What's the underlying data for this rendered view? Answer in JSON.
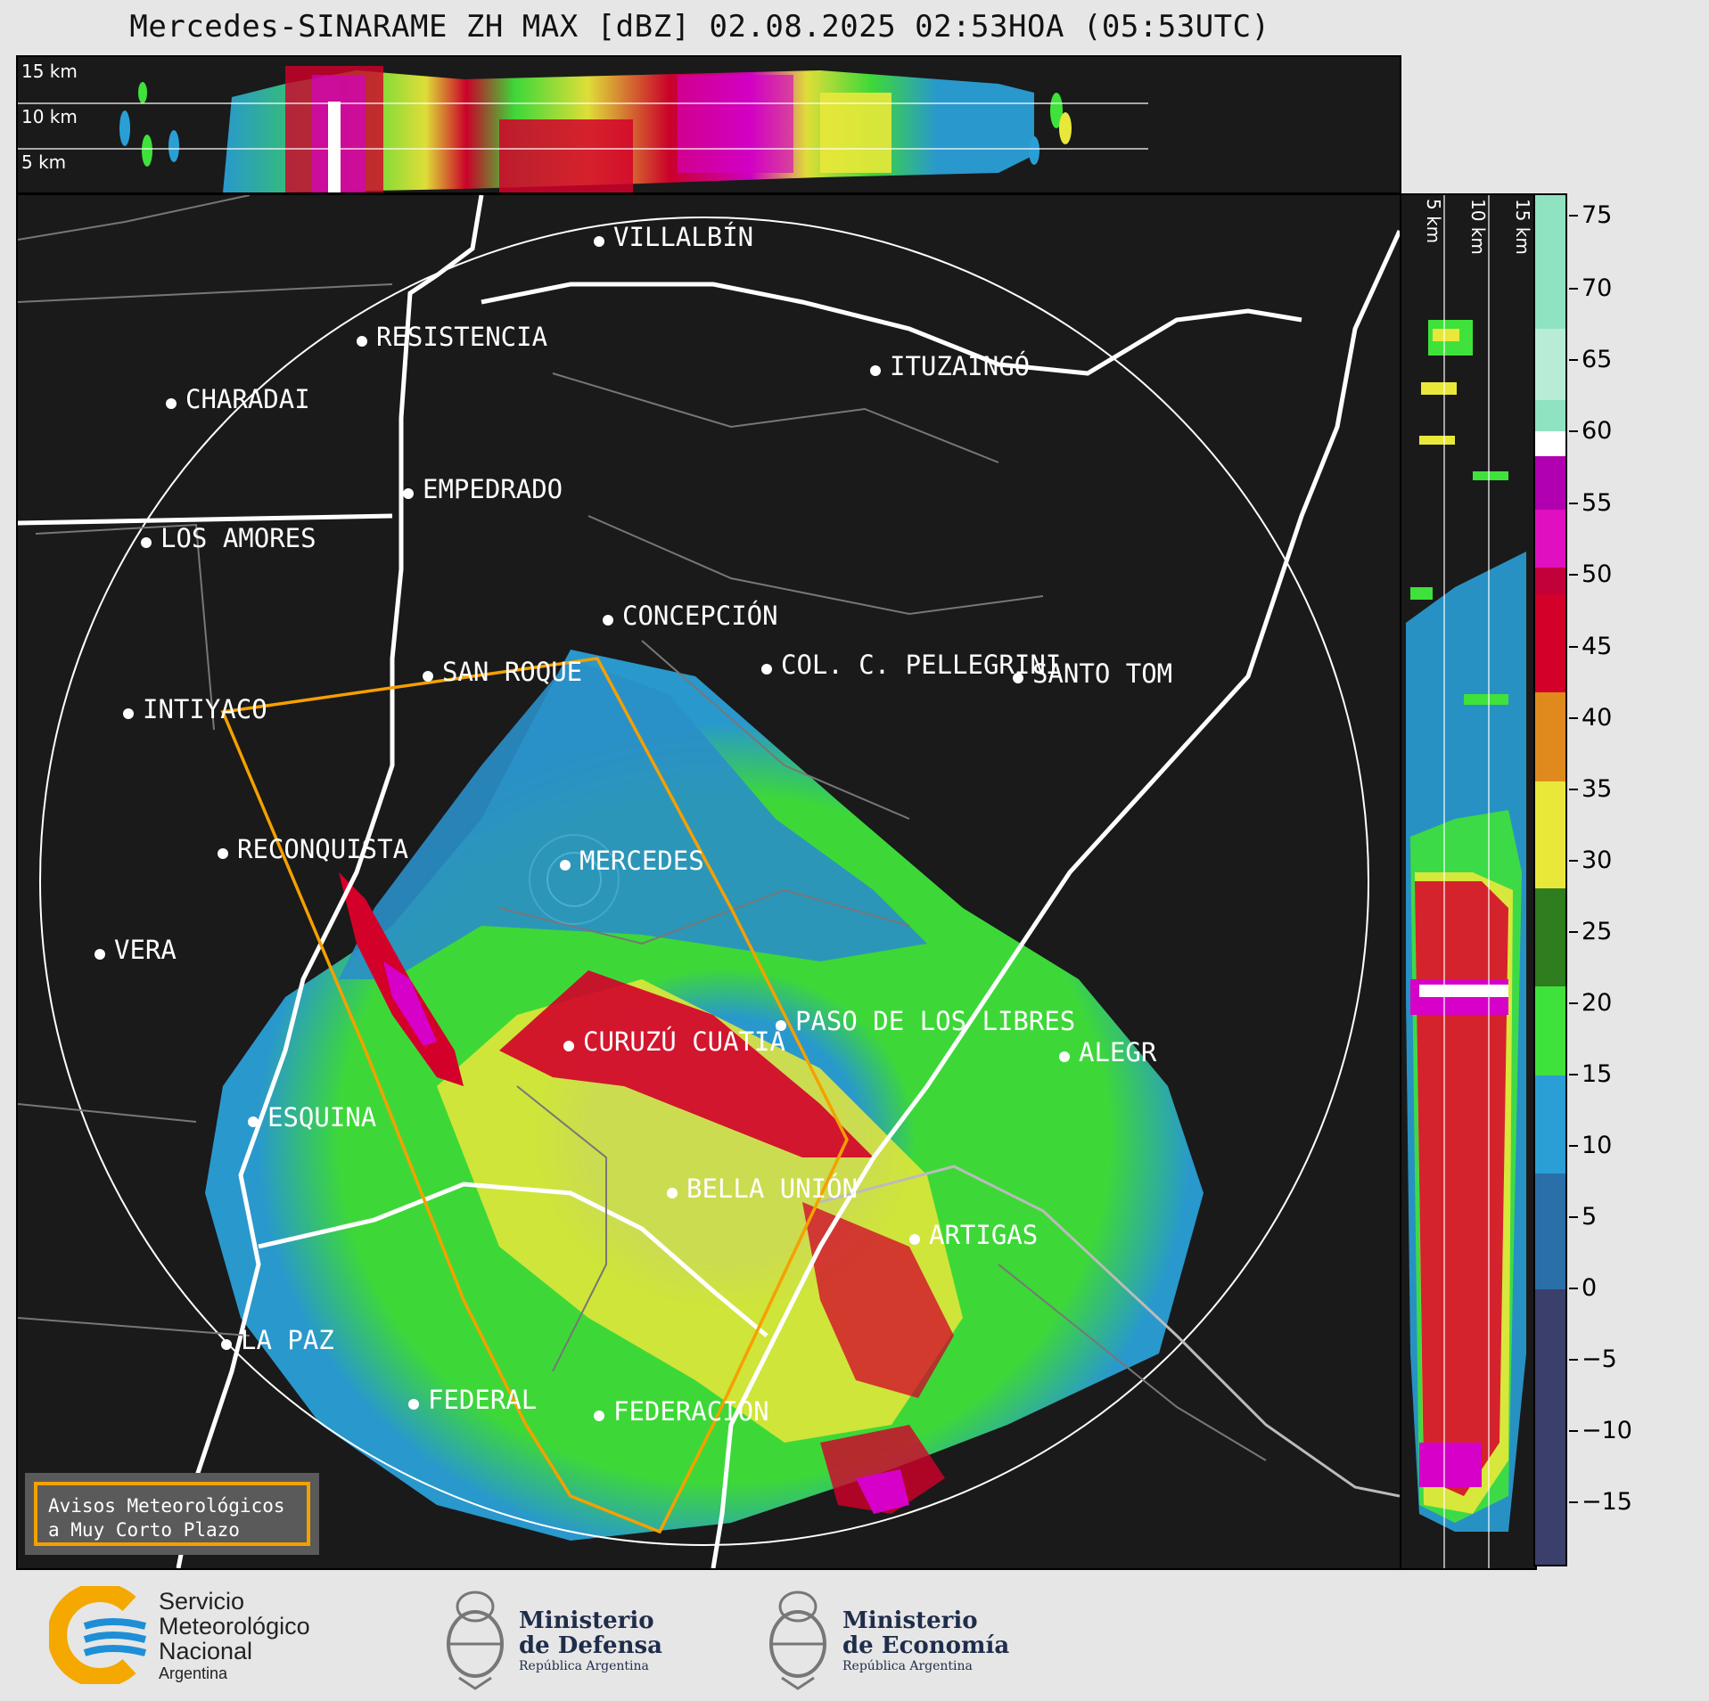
{
  "title": "Mercedes-SINARAME ZH MAX [dBZ] 02.08.2025 02:53HOA (05:53UTC)",
  "top_panel": {
    "height_labels": [
      "15 km",
      "10 km",
      "5 km"
    ]
  },
  "side_panel": {
    "height_labels": [
      "5 km",
      "10 km",
      "15 km"
    ]
  },
  "places": [
    {
      "name": "VILLALBÍN"
    },
    {
      "name": "RESISTENCIA"
    },
    {
      "name": "CHARADAI"
    },
    {
      "name": "ITUZAINGÓ"
    },
    {
      "name": "EMPEDRADO"
    },
    {
      "name": "LOS AMORES"
    },
    {
      "name": "CONCEPCIÓN"
    },
    {
      "name": "COL. C. PELLEGRINI"
    },
    {
      "name": "SANTO TOM"
    },
    {
      "name": "SAN ROQUE"
    },
    {
      "name": "INTIYACO"
    },
    {
      "name": "RECONQUISTA"
    },
    {
      "name": "MERCEDES"
    },
    {
      "name": "VERA"
    },
    {
      "name": "CURUZÚ CUATIÁ"
    },
    {
      "name": "PASO DE LOS LIBRES"
    },
    {
      "name": "ALEGR"
    },
    {
      "name": "ESQUINA"
    },
    {
      "name": "BELLA UNIÓN"
    },
    {
      "name": "ARTIGAS"
    },
    {
      "name": "LA PAZ"
    },
    {
      "name": "FEDERAL"
    },
    {
      "name": "FEDERACIÓN"
    }
  ],
  "warning_box": {
    "line1": "Avisos Meteorológicos",
    "line2": "a Muy Corto Plazo"
  },
  "colorbar": {
    "unit": "dBZ",
    "ticks": [
      "75",
      "70",
      "65",
      "60",
      "55",
      "50",
      "45",
      "40",
      "35",
      "30",
      "25",
      "20",
      "15",
      "10",
      "5",
      "0",
      "−5",
      "−10",
      "−15"
    ],
    "colors": {
      "min": "#3b3f6b",
      "blue": "#2a9fd6",
      "green": "#3fe23a",
      "yellow": "#e9e83a",
      "orange": "#e08a1e",
      "red": "#d3002a",
      "magenta": "#d600c8",
      "white": "#ffffff",
      "mint": "#8fe3c0"
    }
  },
  "logos": {
    "smn": {
      "line1": "Servicio",
      "line2": "Meteorológico",
      "line3": "Nacional",
      "line4": "Argentina"
    },
    "defensa": {
      "line1": "Ministerio",
      "line2": "de Defensa",
      "line3": "República Argentina"
    },
    "economia": {
      "line1": "Ministerio",
      "line2": "de Economía",
      "line3": "República Argentina"
    }
  }
}
